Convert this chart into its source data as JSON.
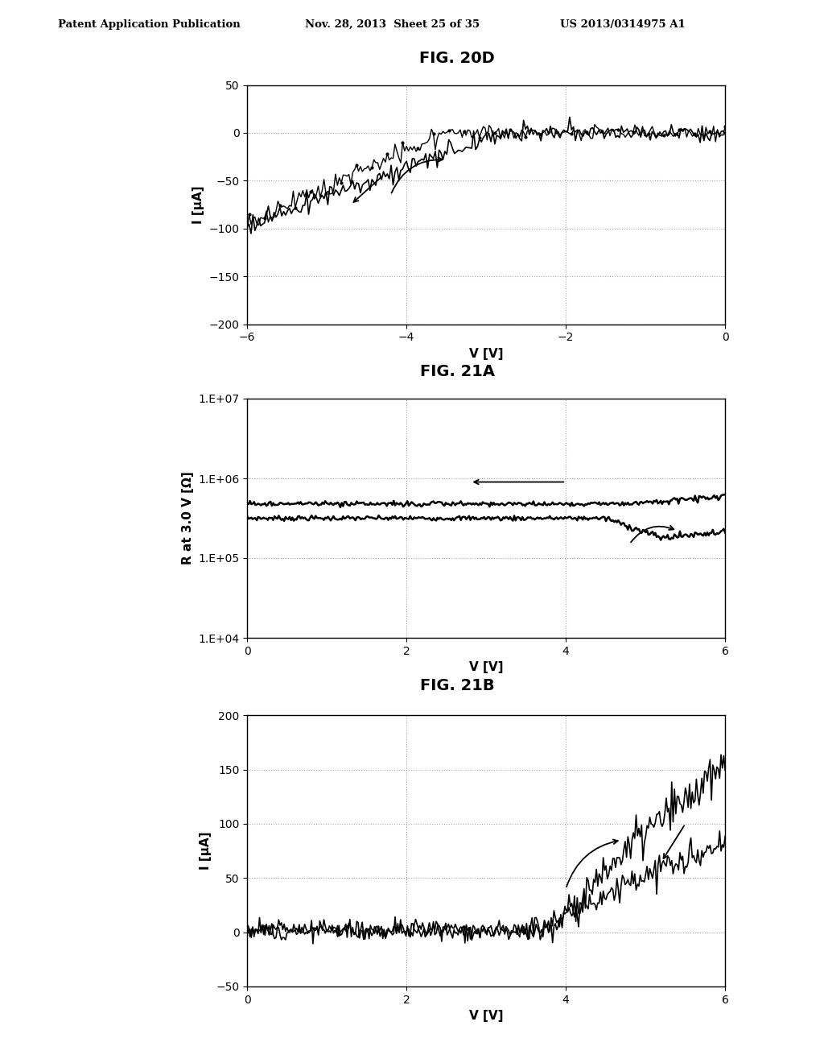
{
  "header_left": "Patent Application Publication",
  "header_mid": "Nov. 28, 2013  Sheet 25 of 35",
  "header_right": "US 2013/0314975 A1",
  "fig1_title": "FIG. 20D",
  "fig1_xlabel": "V [V]",
  "fig1_ylabel": "I [μA]",
  "fig1_xlim": [
    -6,
    0
  ],
  "fig1_ylim": [
    -200,
    50
  ],
  "fig1_yticks": [
    -200,
    -150,
    -100,
    -50,
    0,
    50
  ],
  "fig1_xticks": [
    -6,
    -4,
    -2,
    0
  ],
  "fig2_title": "FIG. 21A",
  "fig2_xlabel": "V [V]",
  "fig2_ylabel": "R at 3.0 V [Ω]",
  "fig2_xlim": [
    0,
    6
  ],
  "fig2_xticks": [
    0,
    2,
    4,
    6
  ],
  "fig3_title": "FIG. 21B",
  "fig3_xlabel": "V [V]",
  "fig3_ylabel": "I [μA]",
  "fig3_xlim": [
    0,
    6
  ],
  "fig3_ylim": [
    -50,
    200
  ],
  "fig3_yticks": [
    -50,
    0,
    50,
    100,
    150,
    200
  ],
  "fig3_xticks": [
    0,
    2,
    4,
    6
  ],
  "bg_color": "#ffffff",
  "line_color": "#000000"
}
